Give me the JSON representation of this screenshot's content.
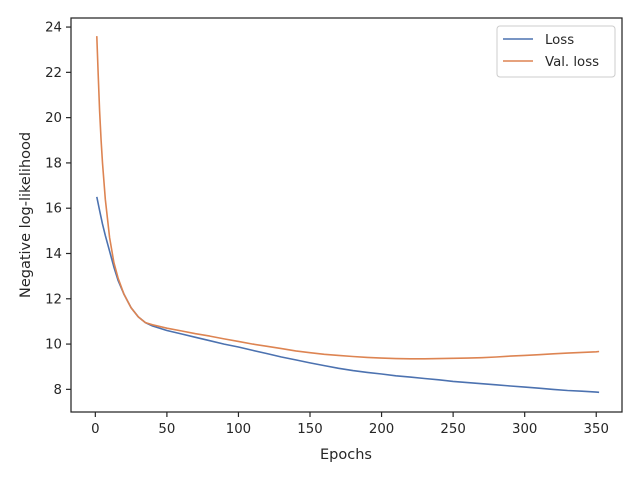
{
  "chart_data": {
    "type": "line",
    "title": "",
    "xlabel": "Epochs",
    "ylabel": "Negative log-likelihood",
    "xlim": [
      -17,
      368
    ],
    "ylim": [
      7.0,
      24.4
    ],
    "xticks": [
      0,
      50,
      100,
      150,
      200,
      250,
      300,
      350
    ],
    "yticks": [
      8,
      10,
      12,
      14,
      16,
      18,
      20,
      22,
      24
    ],
    "grid": false,
    "legend": {
      "placement": "top-right"
    },
    "series": [
      {
        "name": "Loss",
        "color": "#4c72b0",
        "points": [
          [
            1,
            16.5
          ],
          [
            3,
            15.9
          ],
          [
            5,
            15.3
          ],
          [
            7,
            14.8
          ],
          [
            10,
            14.1
          ],
          [
            13,
            13.4
          ],
          [
            16,
            12.8
          ],
          [
            20,
            12.2
          ],
          [
            25,
            11.6
          ],
          [
            30,
            11.2
          ],
          [
            35,
            10.95
          ],
          [
            40,
            10.8
          ],
          [
            50,
            10.6
          ],
          [
            60,
            10.45
          ],
          [
            70,
            10.3
          ],
          [
            80,
            10.15
          ],
          [
            90,
            10.0
          ],
          [
            100,
            9.87
          ],
          [
            110,
            9.72
          ],
          [
            120,
            9.58
          ],
          [
            130,
            9.43
          ],
          [
            140,
            9.3
          ],
          [
            150,
            9.17
          ],
          [
            160,
            9.05
          ],
          [
            170,
            8.93
          ],
          [
            180,
            8.83
          ],
          [
            190,
            8.75
          ],
          [
            200,
            8.68
          ],
          [
            210,
            8.6
          ],
          [
            220,
            8.54
          ],
          [
            230,
            8.48
          ],
          [
            240,
            8.42
          ],
          [
            250,
            8.35
          ],
          [
            260,
            8.3
          ],
          [
            270,
            8.25
          ],
          [
            280,
            8.2
          ],
          [
            290,
            8.15
          ],
          [
            300,
            8.1
          ],
          [
            310,
            8.05
          ],
          [
            320,
            8.0
          ],
          [
            330,
            7.95
          ],
          [
            340,
            7.92
          ],
          [
            350,
            7.88
          ],
          [
            352,
            7.87
          ]
        ]
      },
      {
        "name": "Val. loss",
        "color": "#dd8452",
        "points": [
          [
            1,
            23.6
          ],
          [
            2,
            21.9
          ],
          [
            3,
            20.3
          ],
          [
            4,
            19.0
          ],
          [
            5,
            18.0
          ],
          [
            7,
            16.4
          ],
          [
            10,
            14.7
          ],
          [
            13,
            13.6
          ],
          [
            16,
            12.9
          ],
          [
            20,
            12.2
          ],
          [
            25,
            11.6
          ],
          [
            30,
            11.2
          ],
          [
            35,
            10.95
          ],
          [
            40,
            10.85
          ],
          [
            50,
            10.7
          ],
          [
            60,
            10.58
          ],
          [
            70,
            10.46
          ],
          [
            80,
            10.35
          ],
          [
            90,
            10.23
          ],
          [
            100,
            10.12
          ],
          [
            110,
            10.0
          ],
          [
            120,
            9.9
          ],
          [
            130,
            9.8
          ],
          [
            140,
            9.7
          ],
          [
            150,
            9.62
          ],
          [
            160,
            9.55
          ],
          [
            170,
            9.5
          ],
          [
            180,
            9.45
          ],
          [
            190,
            9.41
          ],
          [
            200,
            9.38
          ],
          [
            210,
            9.36
          ],
          [
            220,
            9.35
          ],
          [
            230,
            9.35
          ],
          [
            240,
            9.36
          ],
          [
            250,
            9.37
          ],
          [
            260,
            9.38
          ],
          [
            270,
            9.4
          ],
          [
            280,
            9.43
          ],
          [
            290,
            9.47
          ],
          [
            300,
            9.5
          ],
          [
            310,
            9.53
          ],
          [
            320,
            9.57
          ],
          [
            330,
            9.6
          ],
          [
            340,
            9.63
          ],
          [
            350,
            9.66
          ],
          [
            352,
            9.67
          ]
        ]
      }
    ]
  }
}
